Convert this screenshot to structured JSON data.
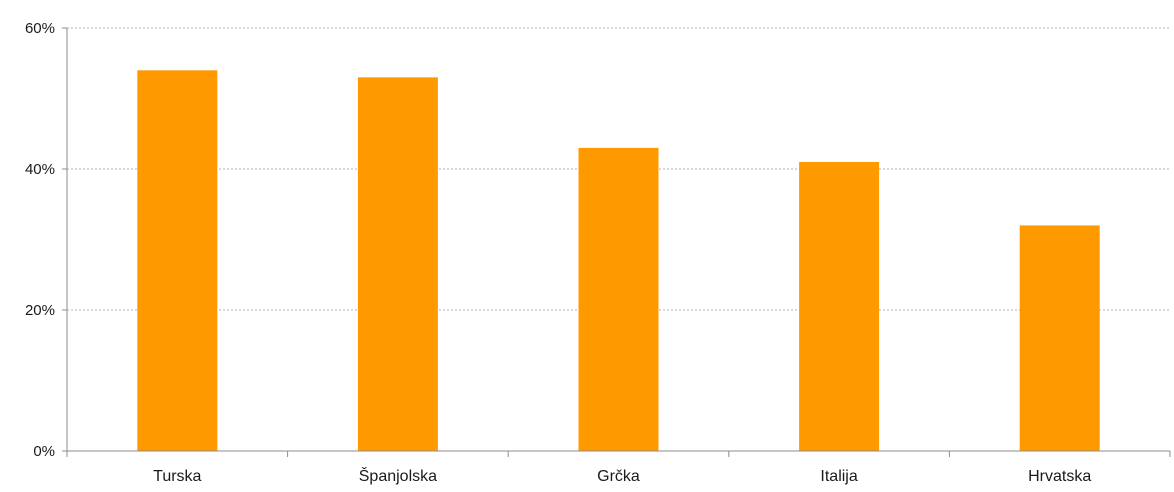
{
  "chart_data": {
    "type": "bar",
    "categories": [
      "Turska",
      "Španjolska",
      "Grčka",
      "Italija",
      "Hrvatska"
    ],
    "values": [
      54,
      53,
      43,
      41,
      32
    ],
    "ylim": [
      0,
      60
    ],
    "yticks": [
      0,
      20,
      40,
      60
    ],
    "ytick_labels": [
      "0%",
      "20%",
      "40%",
      "60%"
    ],
    "title": "",
    "xlabel": "",
    "ylabel": "",
    "grid": true,
    "colors": {
      "bar": "#FF9900",
      "grid": "#b0b0b0",
      "axis": "#8c8c8c"
    }
  }
}
